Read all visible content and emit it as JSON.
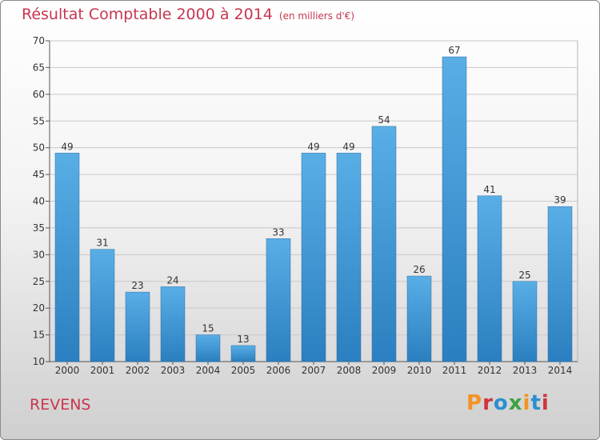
{
  "header": {
    "title": "Résultat Comptable 2000 à 2014",
    "subtitle": "(en milliers d'€)"
  },
  "footer": {
    "location": "REVENS",
    "brand": "Proxiti",
    "brand_colors": [
      "#f39323",
      "#d0343c",
      "#2a8fd0",
      "#3da241",
      "#f39323",
      "#2a8fd0",
      "#d0343c"
    ]
  },
  "chart_data": {
    "type": "bar",
    "title": "Résultat Comptable 2000 à 2014",
    "subtitle": "(en milliers d'€)",
    "categories": [
      "2000",
      "2001",
      "2002",
      "2003",
      "2004",
      "2005",
      "2006",
      "2007",
      "2008",
      "2009",
      "2010",
      "2011",
      "2012",
      "2013",
      "2014"
    ],
    "values": [
      49,
      31,
      23,
      24,
      15,
      13,
      33,
      49,
      49,
      54,
      26,
      67,
      41,
      25,
      39
    ],
    "ylim": [
      10,
      70
    ],
    "yticks": [
      10,
      15,
      20,
      25,
      30,
      35,
      40,
      45,
      50,
      55,
      60,
      65,
      70
    ],
    "grid": true,
    "bar_color_top": "#5aaee6",
    "bar_color_bottom": "#2a7fc0"
  }
}
